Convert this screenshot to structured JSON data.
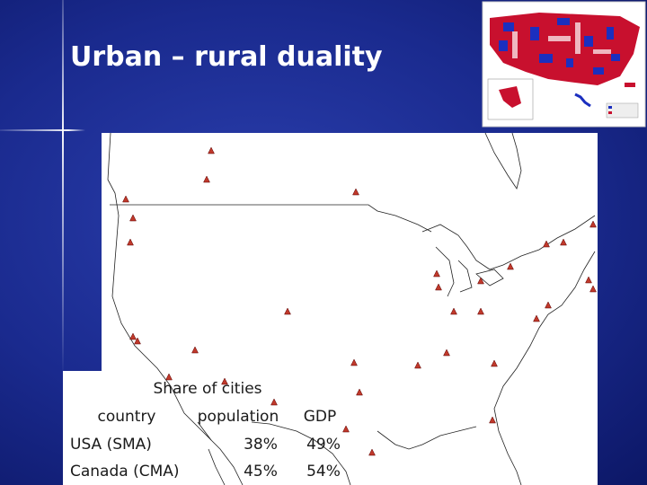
{
  "title": "Urban – rural duality",
  "table": {
    "caption": "Share of cities",
    "header": [
      "country",
      "population",
      "GDP"
    ],
    "rows": [
      [
        "USA (SMA)",
        "38%",
        "49%"
      ],
      [
        "Canada (CMA)",
        "45%",
        "54%"
      ]
    ]
  }
}
